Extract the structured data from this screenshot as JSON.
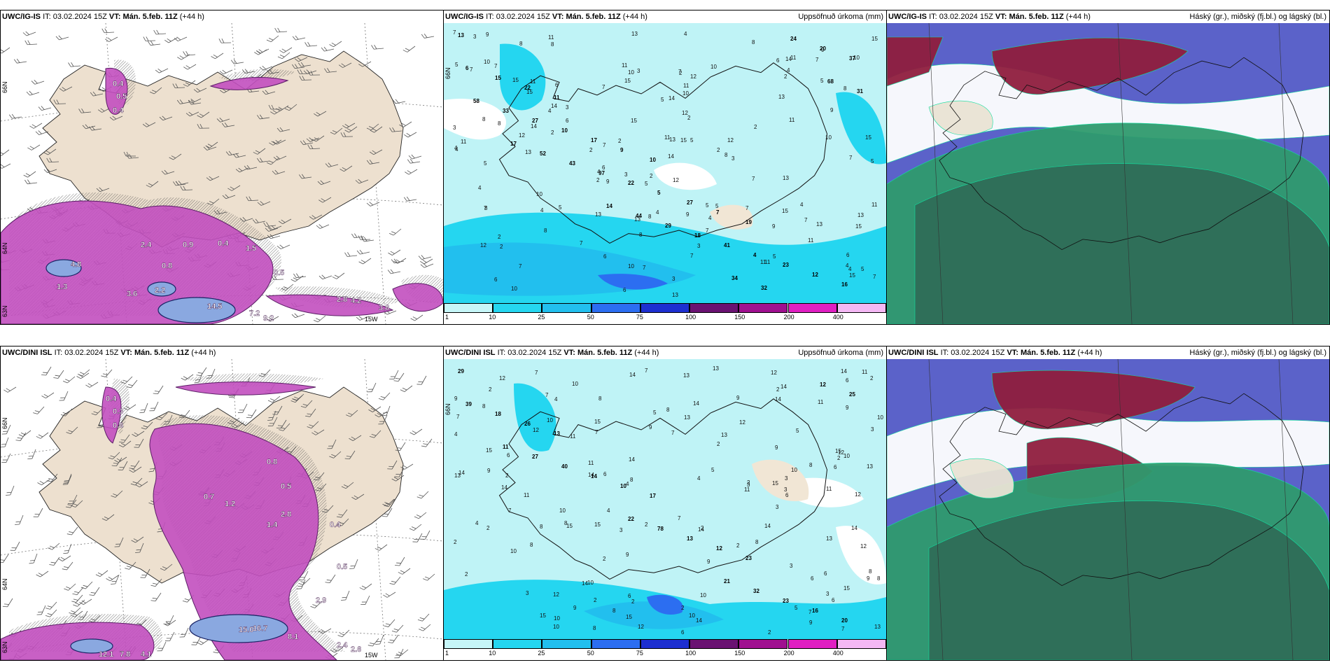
{
  "rows": [
    {
      "model": "UWC/IG-IS",
      "run_label": "IT:",
      "run": "03.02.2024 15Z",
      "valid_label": "VT:",
      "valid": "Mán. 5.feb. 11Z",
      "lead": "(+44 h)",
      "panel1": {
        "lat_labels": [
          "66N",
          "64N",
          "63N"
        ],
        "lon_label": "15W",
        "values": [
          "0.4",
          "0.5",
          "0.4",
          "2.4",
          "0.4",
          "4.8",
          "1.3",
          "3.6",
          "2.2",
          "14.5",
          "7.2",
          "9.2",
          "0.9",
          "0.5",
          "0.8",
          "1.5",
          "4.2",
          "2.8",
          "3.8"
        ]
      },
      "panel2": {
        "title": "Uppsöfnuð úrkoma (mm)",
        "lat_label": "66N",
        "values": [
          "13",
          "11",
          "10",
          "19",
          "16",
          "22",
          "9",
          "7",
          "12",
          "15",
          "17",
          "27",
          "23",
          "6",
          "10",
          "5",
          "4",
          "37",
          "27",
          "22",
          "41",
          "20",
          "33",
          "97",
          "18",
          "24",
          "58",
          "43",
          "29",
          "32",
          "31",
          "52",
          "44",
          "34",
          "68",
          "17",
          "14"
        ]
      },
      "panel3": {
        "title": "Háský (gr.), miðský (fj.bl.) og lágský (bl.)"
      }
    },
    {
      "model": "UWC/DINI ISL",
      "run_label": "IT:",
      "run": "03.02.2024 15Z",
      "valid_label": "VT:",
      "valid": "Mán. 5.feb. 11Z",
      "lead": "(+44 h)",
      "panel1": {
        "lat_labels": [
          "66N",
          "64N",
          "63N"
        ],
        "lon_label": "15W",
        "values": [
          "0.4",
          "0.3",
          "0.6",
          "0.8",
          "0.5",
          "1.2",
          "0.7",
          "1.4",
          "2.8",
          "0.4",
          "0.5",
          "2.9",
          "15.0",
          "16.7",
          "8.1",
          "12.1",
          "7.8",
          "4.1",
          "2.4",
          "2.6"
        ]
      },
      "panel2": {
        "title": "Uppsöfnuð úrkoma (mm)",
        "lat_label": "66N",
        "values": [
          "29",
          "13",
          "17",
          "23",
          "20",
          "26",
          "10",
          "12",
          "16",
          "18",
          "14",
          "13",
          "23",
          "39",
          "40",
          "78",
          "32",
          "25",
          "27",
          "22",
          "21",
          "12",
          "11"
        ]
      },
      "panel3": {
        "title": "Háský (gr.), miðský (fj.bl.) og lágský (bl.)"
      }
    }
  ],
  "colorbar": {
    "ticks": [
      "1",
      "10",
      "25",
      "50",
      "75",
      "100",
      "150",
      "200",
      "400"
    ],
    "colors": [
      "#c6f6f8",
      "#25d6f0",
      "#22bfee",
      "#2c6ef1",
      "#1d2fd0",
      "#6a1272",
      "#a01090",
      "#e01fc2",
      "#f4b8f4"
    ]
  }
}
